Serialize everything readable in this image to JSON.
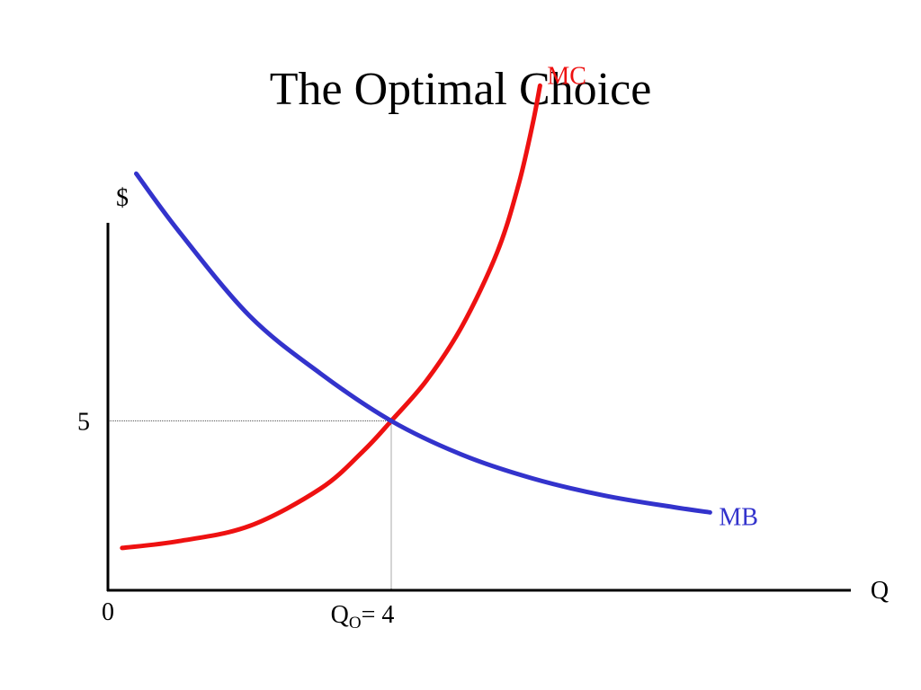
{
  "title": "The Optimal Choice",
  "colors": {
    "mc": "#ee1111",
    "mb": "#3333cc",
    "axis": "#000000",
    "guide": "#555555"
  },
  "chart_data": {
    "type": "line",
    "title": "The Optimal Choice",
    "xlabel": "Q",
    "ylabel": "$",
    "grid": false,
    "legend": "none",
    "x_origin_label": "0",
    "y_tick": {
      "value": 5,
      "label": "5"
    },
    "x_tick": {
      "value": 4,
      "label_main": "Q",
      "label_sub": "O",
      "label_tail": "= 4"
    },
    "optimum": {
      "x": 4,
      "y": 5
    },
    "series": [
      {
        "name": "MC",
        "color": "#ee1111",
        "x": [
          0.2,
          1.0,
          2.0,
          3.0,
          3.6,
          4.0,
          4.5,
          5.0,
          5.5,
          5.8,
          6.0,
          6.1
        ],
        "y": [
          1.25,
          1.45,
          1.9,
          3.0,
          4.1,
          5.0,
          6.2,
          7.8,
          10.0,
          12.0,
          13.8,
          14.9
        ]
      },
      {
        "name": "MB",
        "color": "#3333cc",
        "x": [
          0.4,
          1.0,
          2.0,
          3.0,
          4.0,
          5.0,
          6.0,
          7.0,
          8.0,
          8.5
        ],
        "y": [
          12.3,
          10.6,
          8.1,
          6.4,
          5.0,
          4.0,
          3.3,
          2.8,
          2.45,
          2.3
        ]
      }
    ]
  }
}
